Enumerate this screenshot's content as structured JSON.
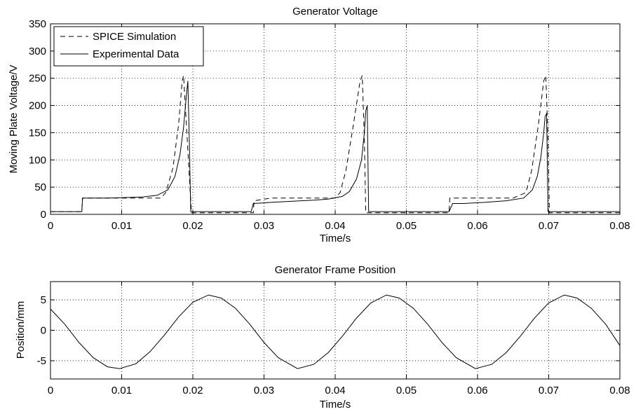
{
  "chart_data": [
    {
      "type": "line",
      "title": "Generator Voltage",
      "xlabel": "Time/s",
      "ylabel": "Moving Plate Voltage/V",
      "xlim": [
        0,
        0.08
      ],
      "ylim": [
        0,
        350
      ],
      "xticks": [
        "0",
        "0.01",
        "0.02",
        "0.03",
        "0.04",
        "0.05",
        "0.06",
        "0.07",
        "0.08"
      ],
      "yticks": [
        "0",
        "50",
        "100",
        "150",
        "200",
        "250",
        "300",
        "350"
      ],
      "grid": true,
      "legend_position": "top-left",
      "series": [
        {
          "name": "SPICE Simulation",
          "style": "dashed",
          "x": [
            0.0,
            0.0044,
            0.0045,
            0.012,
            0.0155,
            0.0162,
            0.0172,
            0.018,
            0.0185,
            0.0187,
            0.0192,
            0.0198,
            0.02,
            0.0285,
            0.0286,
            0.031,
            0.036,
            0.04,
            0.0407,
            0.0415,
            0.0425,
            0.0435,
            0.0438,
            0.0441,
            0.0443,
            0.045,
            0.056,
            0.0561,
            0.06,
            0.065,
            0.0668,
            0.0676,
            0.0685,
            0.0693,
            0.0696,
            0.0699,
            0.0701,
            0.0708,
            0.08
          ],
          "y": [
            5,
            5,
            30,
            30,
            30,
            40,
            85,
            165,
            245,
            255,
            140,
            3,
            3,
            3,
            25,
            30,
            30,
            30,
            40,
            80,
            160,
            245,
            255,
            140,
            3,
            3,
            3,
            30,
            30,
            30,
            40,
            80,
            160,
            245,
            255,
            140,
            3,
            3,
            3
          ]
        },
        {
          "name": "Experimental Data",
          "style": "solid",
          "x": [
            0.0,
            0.0044,
            0.0045,
            0.008,
            0.011,
            0.013,
            0.015,
            0.0165,
            0.0175,
            0.0182,
            0.0187,
            0.0191,
            0.0193,
            0.0195,
            0.0197,
            0.024,
            0.0282,
            0.0285,
            0.031,
            0.034,
            0.037,
            0.039,
            0.041,
            0.042,
            0.043,
            0.0437,
            0.0441,
            0.0443,
            0.0445,
            0.0447,
            0.05,
            0.056,
            0.0565,
            0.058,
            0.061,
            0.064,
            0.0665,
            0.0677,
            0.0684,
            0.0689,
            0.0693,
            0.0695,
            0.0697,
            0.0699,
            0.08
          ],
          "y": [
            5,
            5,
            30,
            30,
            31,
            32,
            35,
            45,
            70,
            110,
            160,
            220,
            245,
            140,
            5,
            5,
            5,
            20,
            22,
            24,
            26,
            28,
            33,
            42,
            65,
            100,
            150,
            190,
            200,
            5,
            5,
            5,
            20,
            20,
            22,
            25,
            30,
            45,
            70,
            105,
            150,
            180,
            185,
            5,
            5
          ]
        }
      ]
    },
    {
      "type": "line",
      "title": "Generator Frame Position",
      "xlabel": "Time/s",
      "ylabel": "Position/mm",
      "xlim": [
        0,
        0.08
      ],
      "ylim": [
        -8,
        8
      ],
      "xticks": [
        "0",
        "0.01",
        "0.02",
        "0.03",
        "0.04",
        "0.05",
        "0.06",
        "0.07",
        "0.08"
      ],
      "yticks": [
        "-5",
        "0",
        "5"
      ],
      "grid": true,
      "series": [
        {
          "style": "solid",
          "x": [
            0.0,
            0.002,
            0.004,
            0.006,
            0.008,
            0.0097,
            0.012,
            0.014,
            0.016,
            0.018,
            0.02,
            0.0222,
            0.024,
            0.026,
            0.028,
            0.03,
            0.032,
            0.0347,
            0.037,
            0.039,
            0.041,
            0.043,
            0.045,
            0.0472,
            0.049,
            0.051,
            0.053,
            0.055,
            0.057,
            0.0597,
            0.062,
            0.064,
            0.066,
            0.068,
            0.07,
            0.0722,
            0.074,
            0.076,
            0.078,
            0.08
          ],
          "y": [
            3.5,
            1.0,
            -2.0,
            -4.5,
            -6.0,
            -6.3,
            -5.5,
            -3.5,
            -0.8,
            2.2,
            4.6,
            5.8,
            5.3,
            3.6,
            1.0,
            -2.0,
            -4.5,
            -6.3,
            -5.6,
            -3.7,
            -1.0,
            2.0,
            4.5,
            5.8,
            5.3,
            3.6,
            1.0,
            -2.0,
            -4.5,
            -6.3,
            -5.6,
            -3.7,
            -1.0,
            2.0,
            4.5,
            5.8,
            5.3,
            3.6,
            1.0,
            -2.5
          ]
        }
      ]
    }
  ]
}
